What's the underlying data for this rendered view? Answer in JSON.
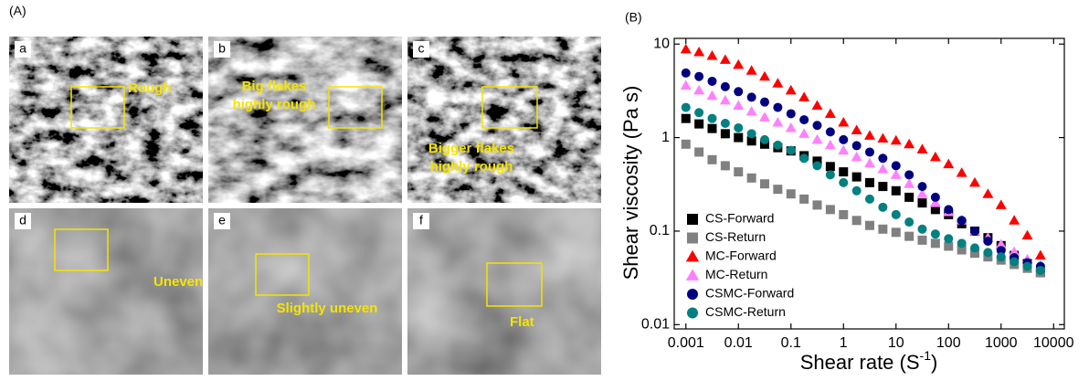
{
  "panel_a": {
    "label": "(A)",
    "images": [
      {
        "label": "a",
        "annotation": [
          "Rough"
        ]
      },
      {
        "label": "b",
        "annotation": [
          "Big flakes",
          "highly rough"
        ]
      },
      {
        "label": "c",
        "annotation": [
          "Bigger flakes",
          "highly rough"
        ]
      },
      {
        "label": "d",
        "annotation": [
          "Uneven"
        ]
      },
      {
        "label": "e",
        "annotation": [
          "Slightly uneven"
        ]
      },
      {
        "label": "f",
        "annotation": [
          "Flat"
        ]
      }
    ]
  },
  "chart_data": {
    "type": "scatter",
    "panel_label": "(B)",
    "xlabel": [
      "Shear rate (S",
      "-1",
      ")"
    ],
    "ylabel": "Shear viscosity (Pa s)",
    "xscale": "log",
    "yscale": "log",
    "xlim": [
      0.0006,
      16000
    ],
    "ylim": [
      0.009,
      11.5
    ],
    "xticks": [
      0.001,
      0.01,
      0.1,
      1,
      10,
      100,
      1000,
      10000
    ],
    "yticks": [
      0.01,
      0.1,
      1,
      10
    ],
    "legend": "lower left",
    "x": [
      0.001,
      0.00178,
      0.00316,
      0.00562,
      0.01,
      0.0178,
      0.0316,
      0.0562,
      0.1,
      0.178,
      0.316,
      0.562,
      1,
      1.78,
      3.16,
      5.62,
      10,
      17.8,
      31.6,
      56.2,
      100,
      178,
      316,
      562,
      1000,
      1780,
      3160,
      5620
    ],
    "series": [
      {
        "name": "CS-Forward",
        "color": "#000000",
        "marker": "square",
        "values": [
          1.6,
          1.4,
          1.25,
          1.1,
          1.0,
          0.92,
          0.85,
          0.78,
          0.72,
          0.64,
          0.56,
          0.49,
          0.43,
          0.38,
          0.33,
          0.3,
          0.27,
          0.23,
          0.2,
          0.17,
          0.15,
          0.12,
          0.1,
          0.085,
          0.07,
          0.055,
          0.045,
          0.036
        ]
      },
      {
        "name": "CS-Return",
        "color": "#808080",
        "marker": "square",
        "values": [
          0.85,
          0.7,
          0.58,
          0.5,
          0.43,
          0.37,
          0.32,
          0.28,
          0.25,
          0.22,
          0.19,
          0.17,
          0.15,
          0.13,
          0.115,
          0.105,
          0.097,
          0.088,
          0.08,
          0.074,
          0.069,
          0.063,
          0.058,
          0.053,
          0.049,
          0.044,
          0.04,
          0.036
        ]
      },
      {
        "name": "MC-Forward",
        "color": "#ff0000",
        "marker": "triangle",
        "values": [
          8.8,
          8.2,
          7.5,
          6.8,
          6.0,
          5.2,
          4.5,
          3.8,
          3.2,
          2.7,
          2.2,
          1.8,
          1.45,
          1.2,
          1.05,
          0.98,
          0.93,
          0.85,
          0.75,
          0.62,
          0.52,
          0.42,
          0.33,
          0.25,
          0.19,
          0.13,
          0.09,
          0.055
        ]
      },
      {
        "name": "MC-Return",
        "color": "#ff80ff",
        "marker": "triangle",
        "values": [
          3.6,
          3.2,
          2.8,
          2.5,
          2.2,
          1.9,
          1.65,
          1.45,
          1.27,
          1.1,
          0.95,
          0.83,
          0.73,
          0.62,
          0.53,
          0.46,
          0.4,
          0.32,
          0.25,
          0.2,
          0.16,
          0.13,
          0.1,
          0.085,
          0.072,
          0.06,
          0.05,
          0.043
        ]
      },
      {
        "name": "CSMC-Forward",
        "color": "#000080",
        "marker": "circle",
        "values": [
          4.9,
          4.5,
          4.0,
          3.5,
          3.1,
          2.7,
          2.4,
          2.1,
          1.8,
          1.55,
          1.35,
          1.15,
          0.95,
          0.82,
          0.7,
          0.6,
          0.5,
          0.4,
          0.3,
          0.23,
          0.17,
          0.13,
          0.1,
          0.078,
          0.062,
          0.052,
          0.046,
          0.042
        ]
      },
      {
        "name": "CSMC-Return",
        "color": "#008080",
        "marker": "circle",
        "values": [
          2.1,
          1.85,
          1.6,
          1.42,
          1.27,
          1.1,
          0.95,
          0.83,
          0.73,
          0.6,
          0.5,
          0.4,
          0.33,
          0.27,
          0.22,
          0.18,
          0.15,
          0.125,
          0.105,
          0.093,
          0.083,
          0.074,
          0.066,
          0.059,
          0.053,
          0.047,
          0.042,
          0.038
        ]
      }
    ]
  }
}
